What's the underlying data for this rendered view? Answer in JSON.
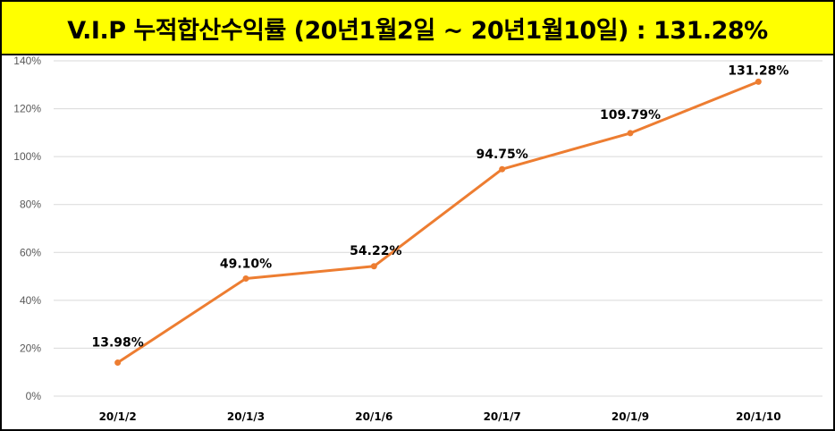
{
  "title": "V.I.P 누적합산수익률 (20년1월2일 ~ 20년1월10일) : 131.28%",
  "colors": {
    "title_bg": "#ffff00",
    "line": "#ed7d31",
    "grid": "#d9d9d9"
  },
  "chart_data": {
    "type": "line",
    "title": "V.I.P 누적합산수익률 (20년1월2일 ~ 20년1월10일) : 131.28%",
    "categories": [
      "20/1/2",
      "20/1/3",
      "20/1/6",
      "20/1/7",
      "20/1/9",
      "20/1/10"
    ],
    "values": [
      13.98,
      49.1,
      54.22,
      94.75,
      109.79,
      131.28
    ],
    "data_labels": [
      "13.98%",
      "49.10%",
      "54.22%",
      "94.75%",
      "109.79%",
      "131.28%"
    ],
    "y_ticks": [
      "0%",
      "20%",
      "40%",
      "60%",
      "80%",
      "100%",
      "120%",
      "140%"
    ],
    "ylim": [
      0,
      140
    ],
    "grid": true,
    "legend": "none"
  }
}
